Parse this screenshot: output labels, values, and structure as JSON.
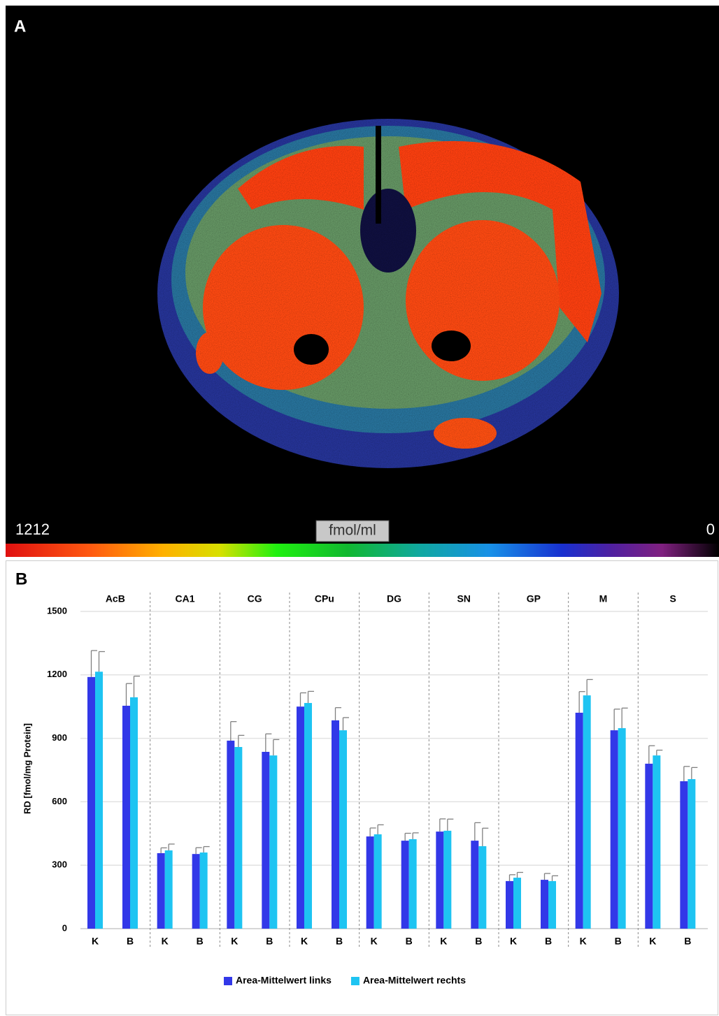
{
  "panel_a": {
    "label": "A",
    "scale_max": 1212,
    "unit": "fmol/ml",
    "scale_min": 0
  },
  "panel_b": {
    "label": "B"
  },
  "chart_data": {
    "type": "bar",
    "groups": [
      "AcB",
      "CA1",
      "CG",
      "CPu",
      "DG",
      "SN",
      "GP",
      "M",
      "S"
    ],
    "categories": [
      "K",
      "B",
      "K",
      "B",
      "K",
      "B",
      "K",
      "B",
      "K",
      "B",
      "K",
      "B",
      "K",
      "B",
      "K",
      "B",
      "K",
      "B"
    ],
    "y_label": "RD [fmol/mg Protein]",
    "ylim": [
      0,
      1500
    ],
    "yticks": [
      0,
      300,
      600,
      900,
      1200,
      1500
    ],
    "grid": true,
    "legend": "bottom",
    "series": [
      {
        "name": "Area-Mittelwert links",
        "color": "#3238e8",
        "values": [
          1190,
          1054,
          357,
          353,
          889,
          836,
          1050,
          985,
          436,
          416,
          459,
          416,
          225,
          231,
          1021,
          938,
          780,
          697
        ],
        "errors": [
          125,
          105,
          25,
          30,
          90,
          85,
          65,
          60,
          40,
          35,
          60,
          85,
          30,
          30,
          100,
          100,
          85,
          70
        ]
      },
      {
        "name": "Area-Mittelwert rechts",
        "color": "#1ec4f2",
        "values": [
          1215,
          1094,
          370,
          360,
          859,
          819,
          1067,
          938,
          446,
          423,
          463,
          390,
          241,
          225,
          1103,
          948,
          819,
          707
        ],
        "errors": [
          95,
          100,
          30,
          28,
          55,
          75,
          55,
          60,
          45,
          30,
          55,
          85,
          25,
          25,
          75,
          95,
          25,
          55
        ]
      }
    ]
  }
}
